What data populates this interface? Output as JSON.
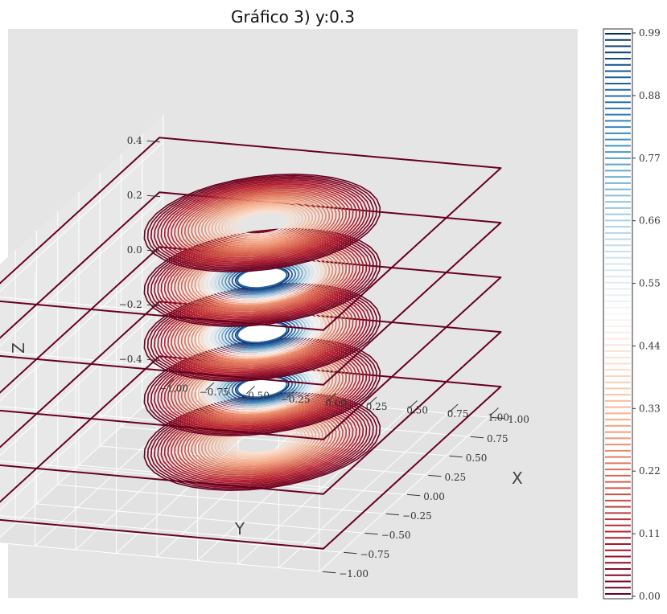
{
  "chart_data": {
    "type": "contour",
    "title": "Gráfico 3) y:0.3",
    "xlabel": "X",
    "ylabel": "Y",
    "zlabel": "Z",
    "x_ticks": [
      "−1.00",
      "−0.75",
      "−0.50",
      "−0.25",
      "0.00",
      "0.25",
      "0.50",
      "0.75",
      "1.00"
    ],
    "y_ticks": [
      "−1.00",
      "−0.75",
      "−0.50",
      "−0.25",
      "0.00",
      "0.25",
      "0.50",
      "0.75",
      "1.00"
    ],
    "z_ticks": [
      "0.4",
      "0.2",
      "0.0",
      "−0.2",
      "−0.4"
    ],
    "xlim": [
      -1,
      1
    ],
    "ylim": [
      -1,
      1
    ],
    "zlim": [
      -0.5,
      0.5
    ],
    "slices_z": [
      -0.4,
      -0.2,
      0.0,
      0.2,
      0.4
    ],
    "slice_has_hole": [
      false,
      true,
      true,
      true,
      false
    ],
    "colormap": "RdBu",
    "colorbar": {
      "range": [
        0.0,
        0.99
      ],
      "ticks": [
        "0.99",
        "0.88",
        "0.77",
        "0.66",
        "0.55",
        "0.44",
        "0.33",
        "0.22",
        "0.11",
        "0.00"
      ]
    },
    "grid": true,
    "outline_color": "#67001f"
  }
}
